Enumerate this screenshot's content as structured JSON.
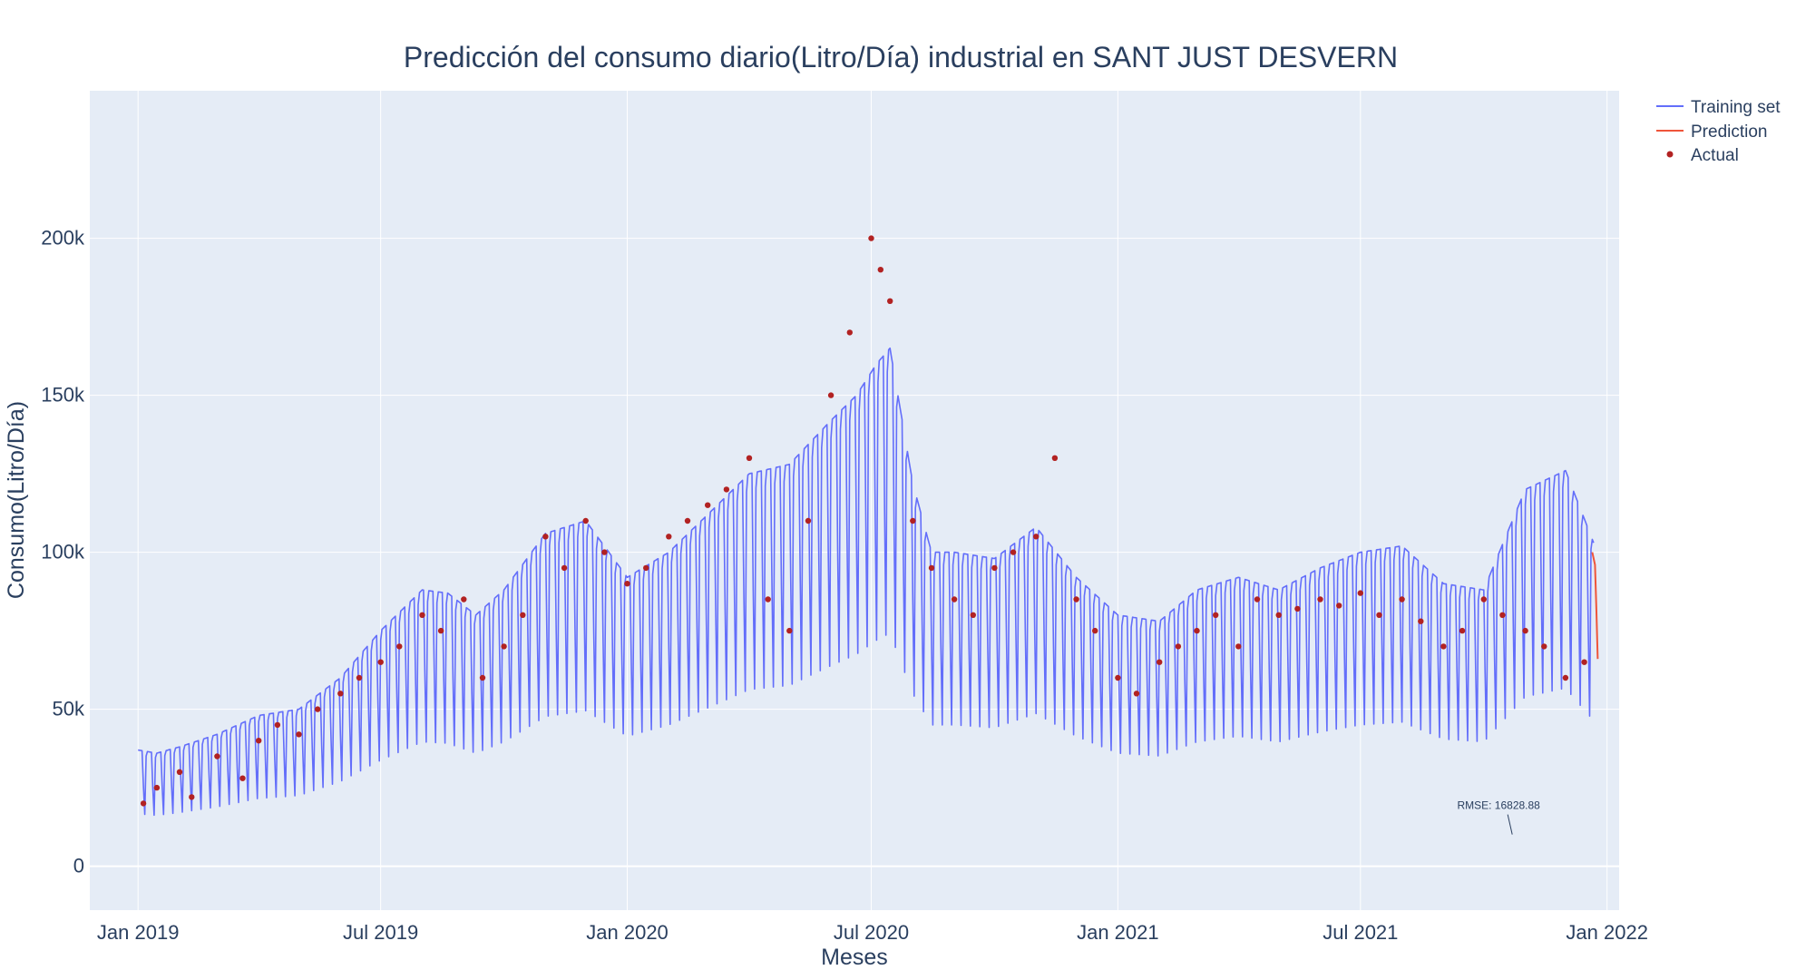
{
  "chart_data": {
    "type": "line",
    "title": "Predicción del consumo diario(Litro/Día) industrial en SANT JUST DESVERN",
    "xlabel": "Meses",
    "ylabel": "Consumo(Litro/Día)",
    "x_range": [
      "2018-11-26",
      "2022-01-10"
    ],
    "ylim": [
      -14000,
      247000
    ],
    "grid": true,
    "legend_position": "top-right",
    "x_ticks": [
      {
        "date": "2019-01-01",
        "label": "Jan 2019"
      },
      {
        "date": "2019-07-01",
        "label": "Jul 2019"
      },
      {
        "date": "2020-01-01",
        "label": "Jan 2020"
      },
      {
        "date": "2020-07-01",
        "label": "Jul 2020"
      },
      {
        "date": "2021-01-01",
        "label": "Jan 2021"
      },
      {
        "date": "2021-07-01",
        "label": "Jul 2021"
      },
      {
        "date": "2022-01-01",
        "label": "Jan 2022"
      }
    ],
    "y_ticks": [
      {
        "value": 0,
        "label": "0"
      },
      {
        "value": 50000,
        "label": "50k"
      },
      {
        "value": 100000,
        "label": "100k"
      },
      {
        "value": 150000,
        "label": "150k"
      },
      {
        "value": 200000,
        "label": "200k"
      }
    ],
    "series": [
      {
        "name": "Training set",
        "style": "line",
        "color": "#636efa",
        "weekly_pattern": {
          "weekday_to_weekend_drop": 0.55
        },
        "x": [
          "2019-01-01",
          "2019-01-15",
          "2019-02-01",
          "2019-03-01",
          "2019-04-01",
          "2019-05-01",
          "2019-06-01",
          "2019-07-01",
          "2019-08-01",
          "2019-08-20",
          "2019-09-10",
          "2019-10-01",
          "2019-11-01",
          "2019-12-01",
          "2020-01-01",
          "2020-02-01",
          "2020-03-01",
          "2020-04-01",
          "2020-05-01",
          "2020-06-01",
          "2020-06-20",
          "2020-07-05",
          "2020-07-15",
          "2020-08-01",
          "2020-08-15",
          "2020-09-01",
          "2020-10-01",
          "2020-11-01",
          "2020-12-01",
          "2021-01-01",
          "2021-02-01",
          "2021-03-01",
          "2021-04-01",
          "2021-05-01",
          "2021-06-01",
          "2021-07-01",
          "2021-08-01",
          "2021-09-01",
          "2021-10-01",
          "2021-11-01",
          "2021-12-01",
          "2021-12-22"
        ],
        "y": [
          37000,
          36000,
          38000,
          42000,
          48000,
          50000,
          60000,
          75000,
          88000,
          87000,
          80000,
          88000,
          106000,
          110000,
          92000,
          100000,
          112000,
          125000,
          128000,
          142000,
          150000,
          160000,
          165000,
          122000,
          100000,
          100000,
          98000,
          108000,
          92000,
          80000,
          78000,
          88000,
          92000,
          88000,
          95000,
          100000,
          102000,
          90000,
          88000,
          120000,
          126000,
          103000
        ]
      },
      {
        "name": "Prediction",
        "style": "line",
        "color": "#ef553b",
        "x": [
          "2021-12-21",
          "2021-12-22",
          "2021-12-23",
          "2021-12-24",
          "2021-12-25"
        ],
        "y": [
          100000,
          98000,
          96000,
          82000,
          66000
        ]
      },
      {
        "name": "Actual",
        "style": "markers",
        "color": "#b22222",
        "x": [
          "2019-01-05",
          "2019-01-15",
          "2019-02-01",
          "2019-02-10",
          "2019-03-01",
          "2019-03-20",
          "2019-04-01",
          "2019-04-15",
          "2019-05-01",
          "2019-05-15",
          "2019-06-01",
          "2019-06-15",
          "2019-07-01",
          "2019-07-15",
          "2019-08-01",
          "2019-08-15",
          "2019-09-01",
          "2019-09-15",
          "2019-10-01",
          "2019-10-15",
          "2019-11-01",
          "2019-11-15",
          "2019-12-01",
          "2019-12-15",
          "2020-01-01",
          "2020-01-15",
          "2020-02-01",
          "2020-02-15",
          "2020-03-01",
          "2020-03-15",
          "2020-04-01",
          "2020-04-15",
          "2020-05-01",
          "2020-05-15",
          "2020-06-01",
          "2020-06-15",
          "2020-07-01",
          "2020-07-08",
          "2020-07-15",
          "2020-08-01",
          "2020-08-15",
          "2020-09-01",
          "2020-09-15",
          "2020-10-01",
          "2020-10-15",
          "2020-11-01",
          "2020-11-15",
          "2020-12-01",
          "2020-12-15",
          "2021-01-01",
          "2021-01-15",
          "2021-02-01",
          "2021-02-15",
          "2021-03-01",
          "2021-03-15",
          "2021-04-01",
          "2021-04-15",
          "2021-05-01",
          "2021-05-15",
          "2021-06-01",
          "2021-06-15",
          "2021-07-01",
          "2021-07-15",
          "2021-08-01",
          "2021-08-15",
          "2021-09-01",
          "2021-09-15",
          "2021-10-01",
          "2021-10-15",
          "2021-11-01",
          "2021-11-15",
          "2021-12-01",
          "2021-12-15"
        ],
        "y": [
          20000,
          25000,
          30000,
          22000,
          35000,
          28000,
          40000,
          45000,
          42000,
          50000,
          55000,
          60000,
          65000,
          70000,
          80000,
          75000,
          85000,
          60000,
          70000,
          80000,
          105000,
          95000,
          110000,
          100000,
          90000,
          95000,
          105000,
          110000,
          115000,
          120000,
          130000,
          85000,
          75000,
          110000,
          150000,
          170000,
          200000,
          190000,
          180000,
          110000,
          95000,
          85000,
          80000,
          95000,
          100000,
          105000,
          130000,
          85000,
          75000,
          60000,
          55000,
          65000,
          70000,
          75000,
          80000,
          70000,
          85000,
          80000,
          82000,
          85000,
          83000,
          87000,
          80000,
          85000,
          78000,
          70000,
          75000,
          85000,
          80000,
          75000,
          70000,
          60000,
          65000
        ]
      }
    ],
    "annotations": [
      {
        "text": "RMSE: 16828.88",
        "x": "2021-10-27",
        "y": 2000
      }
    ]
  }
}
